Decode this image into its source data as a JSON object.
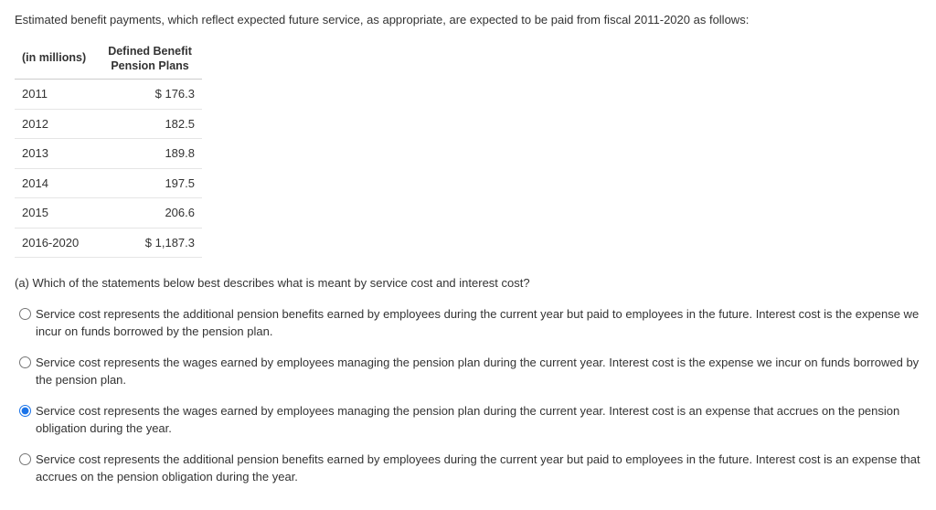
{
  "intro": "Estimated benefit payments, which reflect expected future service, as appropriate, are expected to be paid from fiscal 2011-2020 as follows:",
  "table": {
    "header": {
      "col1_line": "(in millions)",
      "col2_line1": "Defined Benefit",
      "col2_line2": "Pension Plans"
    },
    "rows": [
      {
        "year": "2011",
        "value": "$ 176.3"
      },
      {
        "year": "2012",
        "value": "182.5"
      },
      {
        "year": "2013",
        "value": "189.8"
      },
      {
        "year": "2014",
        "value": "197.5"
      },
      {
        "year": "2015",
        "value": "206.6"
      },
      {
        "year": "2016-2020",
        "value": "$ 1,187.3"
      }
    ]
  },
  "question": "(a) Which of the statements below best describes what is meant by service cost and interest cost?",
  "options": [
    {
      "text": "Service cost represents the additional pension benefits earned by employees during the current year but paid to employees in the future. Interest cost is the expense we incur on funds borrowed by the pension plan.",
      "selected": false
    },
    {
      "text": "Service cost represents the wages earned by employees managing the pension plan during the current year. Interest cost is the expense we incur on funds borrowed by the pension plan.",
      "selected": false
    },
    {
      "text": "Service cost represents the wages earned by employees managing the pension plan during the current year. Interest cost is an expense that accrues on the pension obligation during the year.",
      "selected": true
    },
    {
      "text": "Service cost represents the additional pension benefits earned by employees during the current year but paid to employees in the future. Interest cost is an expense that accrues on the pension obligation during the year.",
      "selected": false
    }
  ]
}
